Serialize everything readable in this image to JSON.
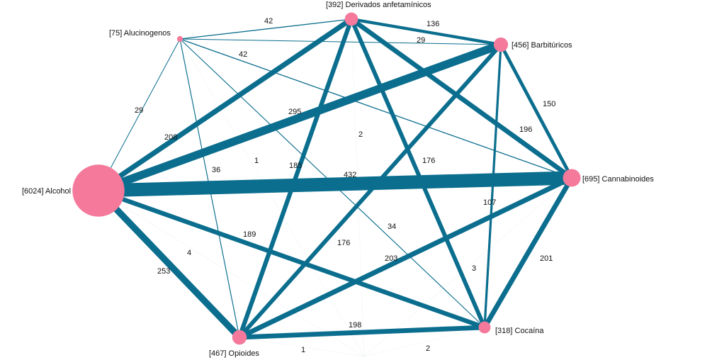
{
  "network": {
    "colors": {
      "edge": "#0b6e8e",
      "node": "#f4799b",
      "text": "#111111"
    },
    "nodes": [
      {
        "id": "alcohol",
        "label": "[6024] Alcohol",
        "count": 6024
      },
      {
        "id": "alucinogenos",
        "label": "[75] Alucinogenos",
        "count": 75
      },
      {
        "id": "derivados",
        "label": "[392] Derivados anfetamínicos",
        "count": 392
      },
      {
        "id": "barbituricos",
        "label": "[456] Barbitúricos",
        "count": 456
      },
      {
        "id": "cannabinoides",
        "label": "[695] Cannabinoides",
        "count": 695
      },
      {
        "id": "cocaina",
        "label": "[318] Cocaína",
        "count": 318
      },
      {
        "id": "opioides",
        "label": "[467] Opioides",
        "count": 467
      },
      {
        "id": "unlabeled",
        "label": "",
        "count": 0
      }
    ],
    "edges": [
      {
        "source": "alcohol",
        "target": "cannabinoides",
        "weight": 432
      },
      {
        "source": "alcohol",
        "target": "barbituricos",
        "weight": 295
      },
      {
        "source": "alcohol",
        "target": "opioides",
        "weight": 253
      },
      {
        "source": "alcohol",
        "target": "derivados",
        "weight": 208
      },
      {
        "source": "alcohol",
        "target": "cocaina",
        "weight": 189
      },
      {
        "source": "alcohol",
        "target": "alucinogenos",
        "weight": 29
      },
      {
        "source": "alcohol",
        "target": "unlabeled",
        "weight": 4
      },
      {
        "source": "alucinogenos",
        "target": "derivados",
        "weight": 42
      },
      {
        "source": "alucinogenos",
        "target": "cannabinoides",
        "weight": 42
      },
      {
        "source": "alucinogenos",
        "target": "barbituricos",
        "weight": 29
      },
      {
        "source": "alucinogenos",
        "target": "opioides",
        "weight": 36
      },
      {
        "source": "alucinogenos",
        "target": "cocaina",
        "weight": 34
      },
      {
        "source": "alucinogenos",
        "target": "unlabeled",
        "weight": 1
      },
      {
        "source": "derivados",
        "target": "barbituricos",
        "weight": 136
      },
      {
        "source": "derivados",
        "target": "cannabinoides",
        "weight": 196
      },
      {
        "source": "derivados",
        "target": "opioides",
        "weight": 185
      },
      {
        "source": "derivados",
        "target": "cocaina",
        "weight": 176
      },
      {
        "source": "derivados",
        "target": "unlabeled",
        "weight": 2
      },
      {
        "source": "barbituricos",
        "target": "cannabinoides",
        "weight": 150
      },
      {
        "source": "barbituricos",
        "target": "opioides",
        "weight": 176
      },
      {
        "source": "barbituricos",
        "target": "cocaina",
        "weight": 107
      },
      {
        "source": "cannabinoides",
        "target": "opioides",
        "weight": 203
      },
      {
        "source": "cannabinoides",
        "target": "cocaina",
        "weight": 201
      },
      {
        "source": "cocaina",
        "target": "opioides",
        "weight": 198
      },
      {
        "source": "cocaina",
        "target": "unlabeled",
        "weight": 3
      },
      {
        "source": "opioides",
        "target": "unlabeled",
        "weight": 1
      },
      {
        "source": "cannabinoides",
        "target": "unlabeled",
        "weight": 2
      }
    ]
  }
}
